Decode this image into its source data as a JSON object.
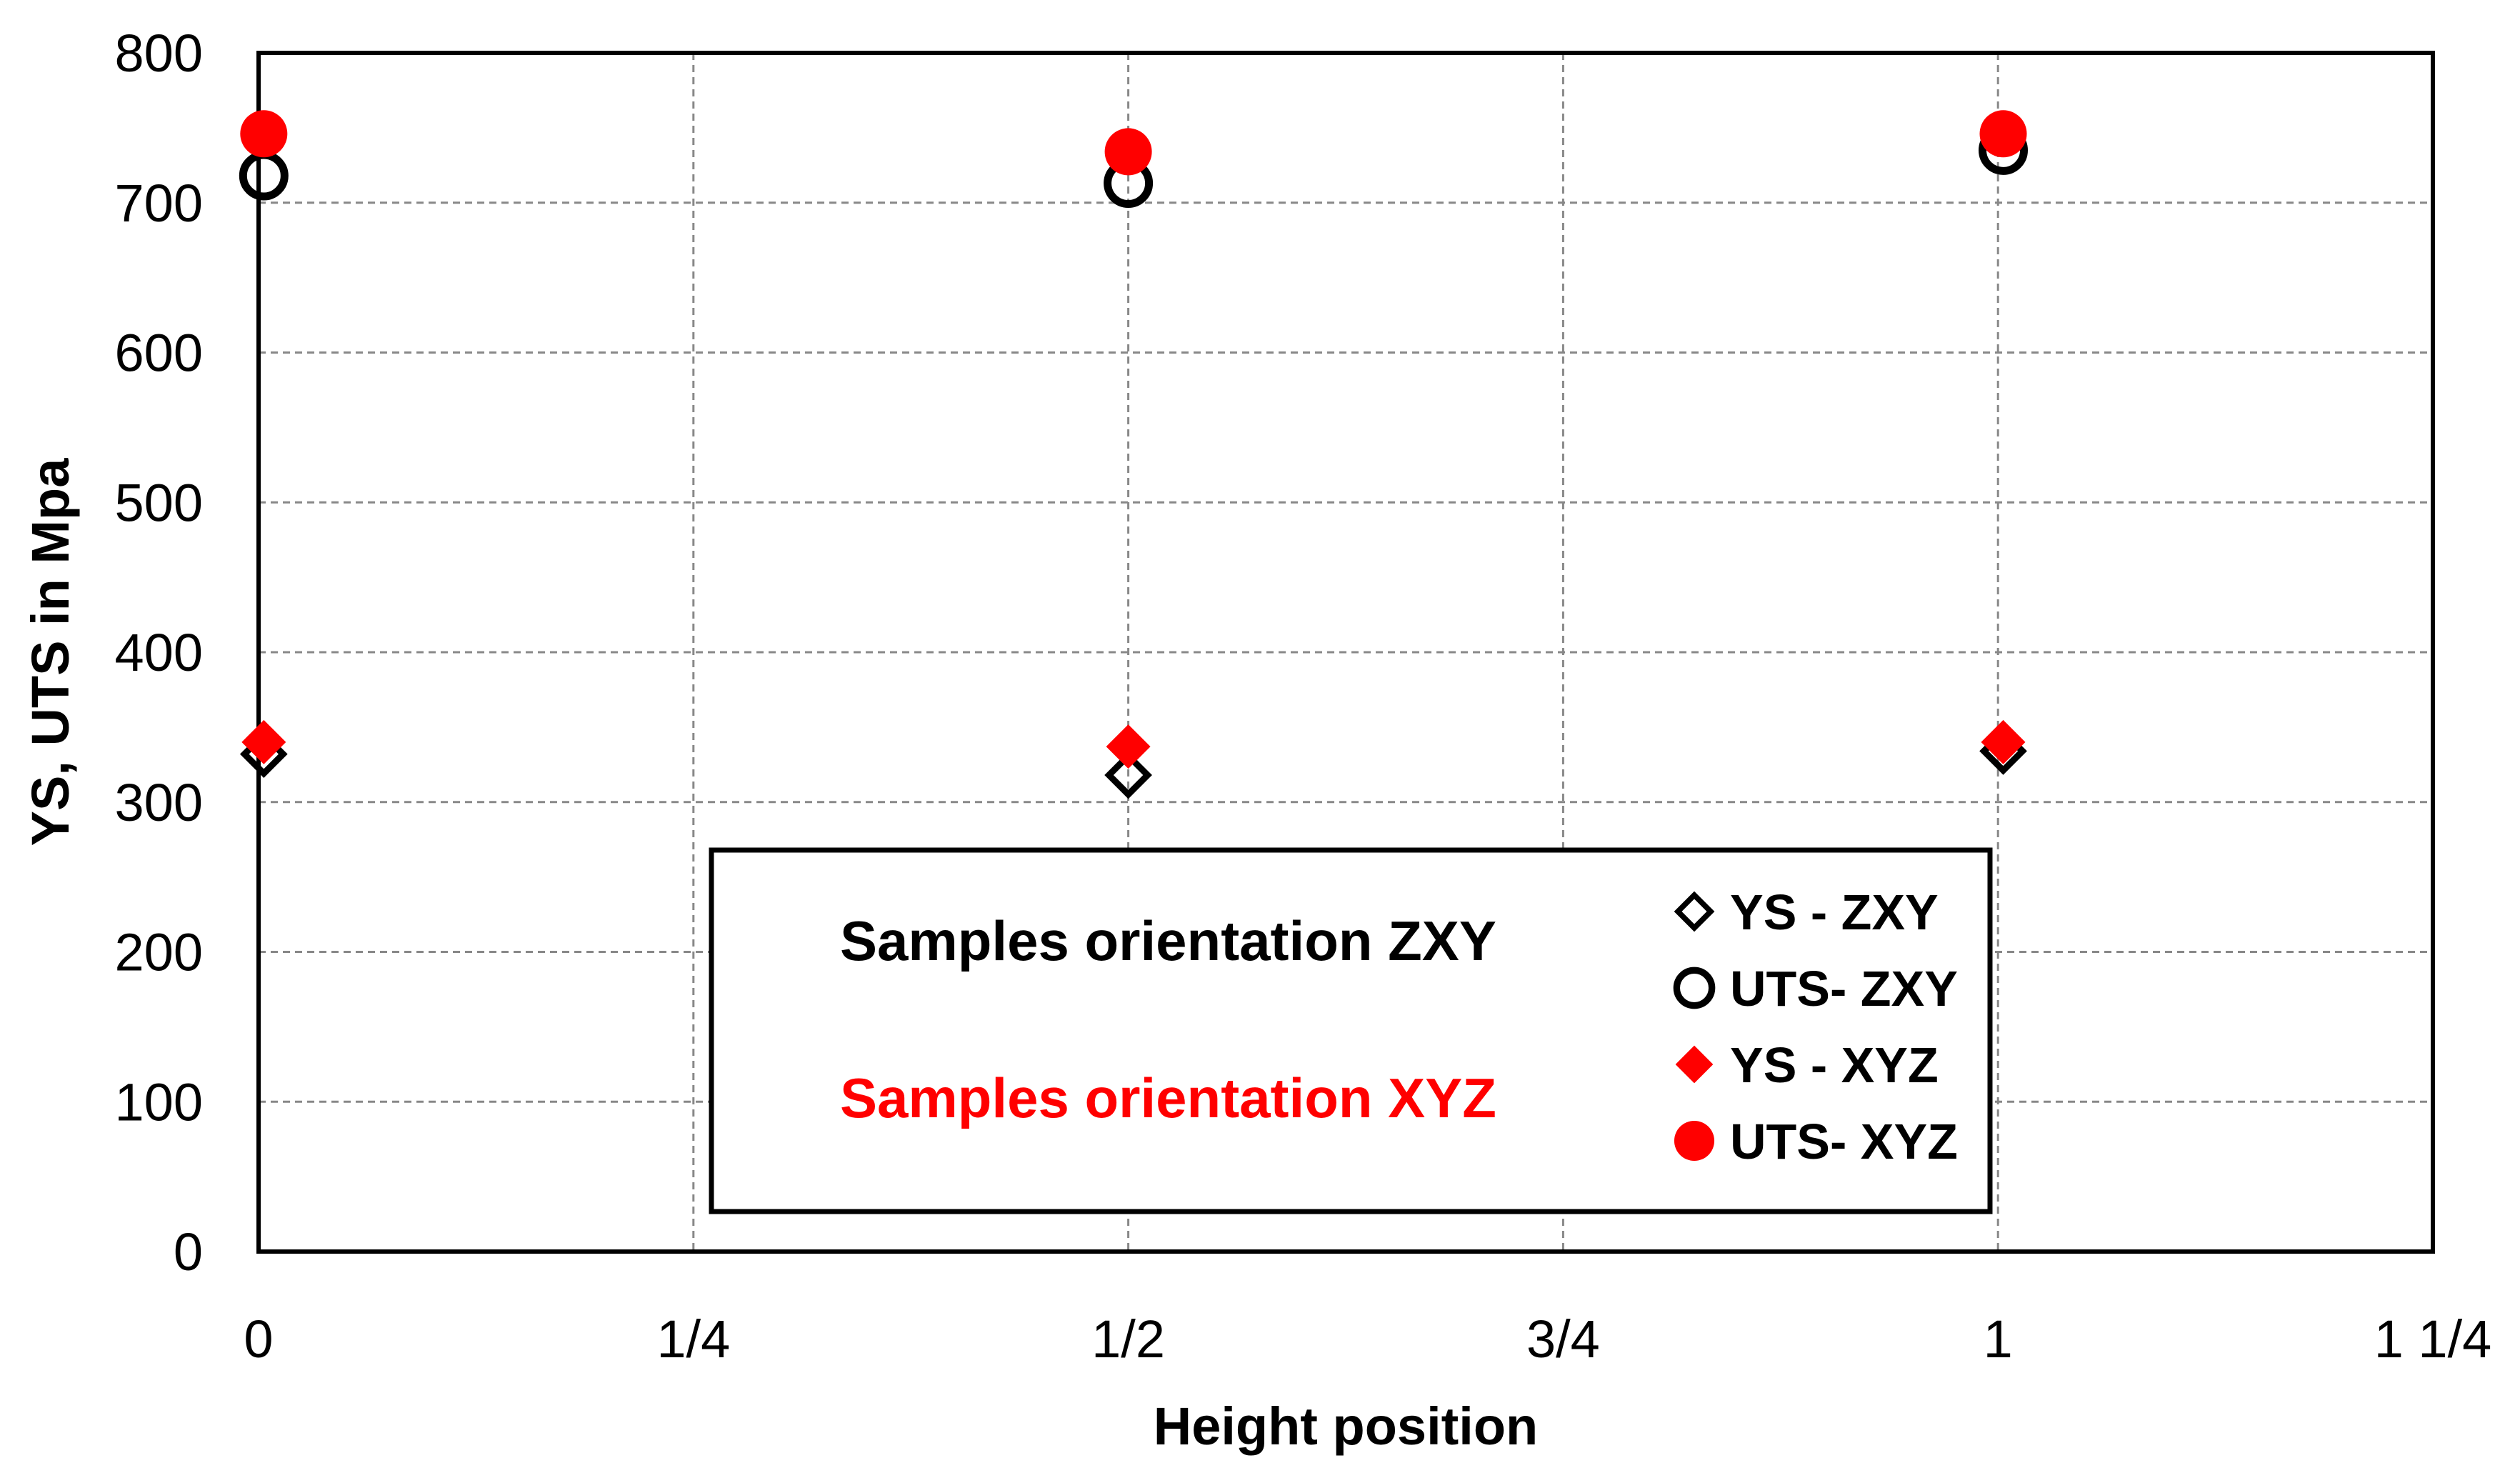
{
  "chart_data": {
    "type": "scatter",
    "title": "",
    "xlabel": "Height position",
    "ylabel": "YS, UTS in Mpa",
    "xlim": [
      0,
      1.25
    ],
    "ylim": [
      0,
      800
    ],
    "x_ticks": [
      0,
      0.25,
      0.5,
      0.75,
      1,
      1.25
    ],
    "x_tick_labels": [
      "0",
      "1/4",
      "1/2",
      "3/4",
      "1",
      "1 1/4"
    ],
    "y_ticks": [
      0,
      100,
      200,
      300,
      400,
      500,
      600,
      700,
      800
    ],
    "y_tick_labels": [
      "0",
      "100",
      "200",
      "300",
      "400",
      "500",
      "600",
      "700",
      "800"
    ],
    "grid": true,
    "legend_position": "bottom-center",
    "series": [
      {
        "name": "YS - ZXY",
        "marker": "diamond-open",
        "color": "#000000",
        "x": [
          0,
          0.5,
          1
        ],
        "y": [
          332,
          318,
          334
        ]
      },
      {
        "name": "UTS- ZXY",
        "marker": "circle-open",
        "color": "#000000",
        "x": [
          0,
          0.5,
          1
        ],
        "y": [
          718,
          713,
          735
        ]
      },
      {
        "name": "YS - XYZ",
        "marker": "diamond-filled",
        "color": "#ff0000",
        "x": [
          0,
          0.5,
          1
        ],
        "y": [
          340,
          337,
          340
        ]
      },
      {
        "name": "UTS- XYZ",
        "marker": "circle-filled",
        "color": "#ff0000",
        "x": [
          0,
          0.5,
          1
        ],
        "y": [
          746,
          734,
          746
        ]
      }
    ],
    "annotations": [
      {
        "text": "Samples orientation ZXY",
        "color": "#000000"
      },
      {
        "text": "Samples orientation XYZ",
        "color": "#ff0000"
      }
    ]
  }
}
